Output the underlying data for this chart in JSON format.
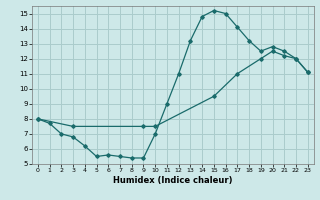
{
  "xlabel": "Humidex (Indice chaleur)",
  "bg_color": "#cde8e8",
  "grid_color": "#aacccc",
  "line_color": "#1a6b6b",
  "xlim": [
    -0.5,
    23.5
  ],
  "ylim": [
    5,
    15.5
  ],
  "xticks": [
    0,
    1,
    2,
    3,
    4,
    5,
    6,
    7,
    8,
    9,
    10,
    11,
    12,
    13,
    14,
    15,
    16,
    17,
    18,
    19,
    20,
    21,
    22,
    23
  ],
  "yticks": [
    5,
    6,
    7,
    8,
    9,
    10,
    11,
    12,
    13,
    14,
    15
  ],
  "curve1_x": [
    0,
    1,
    2,
    3,
    4,
    5,
    6,
    7,
    8,
    9,
    10,
    11,
    12,
    13,
    14,
    15,
    16,
    17,
    18,
    19,
    20,
    21,
    22,
    23
  ],
  "curve1_y": [
    8.0,
    7.7,
    7.0,
    6.8,
    6.2,
    5.5,
    5.6,
    5.5,
    5.4,
    5.4,
    7.0,
    9.0,
    11.0,
    13.2,
    14.8,
    15.2,
    15.0,
    14.1,
    13.2,
    12.5,
    12.8,
    12.5,
    12.0,
    11.1
  ],
  "curve2_x": [
    0,
    3,
    9,
    10,
    15,
    17,
    19,
    20,
    21,
    22,
    23
  ],
  "curve2_y": [
    8.0,
    7.5,
    7.5,
    7.5,
    9.5,
    11.0,
    12.0,
    12.5,
    12.2,
    12.0,
    11.1
  ]
}
